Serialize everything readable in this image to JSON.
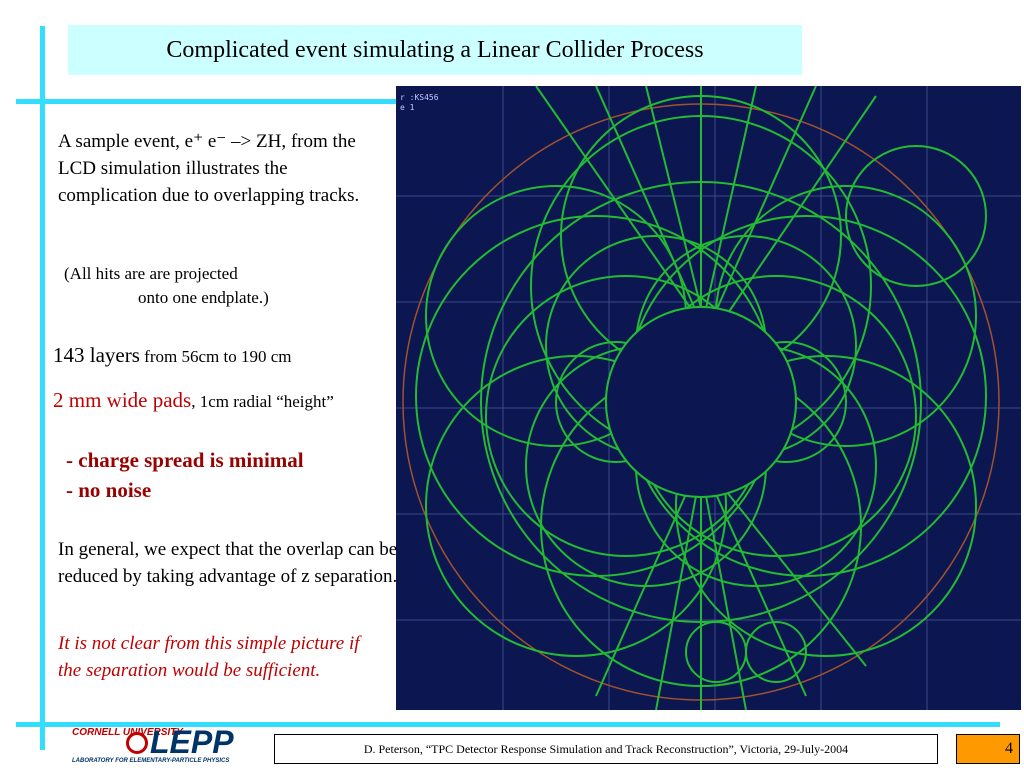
{
  "title": "Complicated event simulating a Linear Collider Process",
  "paragraphs": {
    "sample": "A sample event, e⁺ e⁻  –>  ZH, from the LCD simulation illustrates the complication due to overlapping tracks.",
    "projection_line1": "(All hits are are projected",
    "projection_line2": "onto one endplate.)",
    "layers_main": "143 layers",
    "layers_detail": " from 56cm to 190 cm",
    "pads_main": "2 mm wide pads",
    "pads_detail": ", 1cm radial “height”",
    "bullet1": "- charge spread is minimal",
    "bullet2": "- no noise",
    "general": "In general, we expect that the overlap can be reduced by taking advantage of z separation.",
    "caveat": "It is not clear from this simple picture if the separation would be sufficient."
  },
  "figure": {
    "readout_line1": "r  :KS456",
    "readout_line2": "e       1",
    "background": "#0c1650",
    "track_color": "#22bb33",
    "boundary_color": "#a0522d"
  },
  "logo": {
    "university": "CORNELL UNIVERSITY",
    "name": "LEPP",
    "subtitle": "LABORATORY FOR ELEMENTARY-PARTICLE PHYSICS"
  },
  "footer": {
    "citation": "D. Peterson, “TPC Detector Response Simulation and Track Reconstruction”, Victoria, 29-July-2004",
    "page_number": "4"
  }
}
